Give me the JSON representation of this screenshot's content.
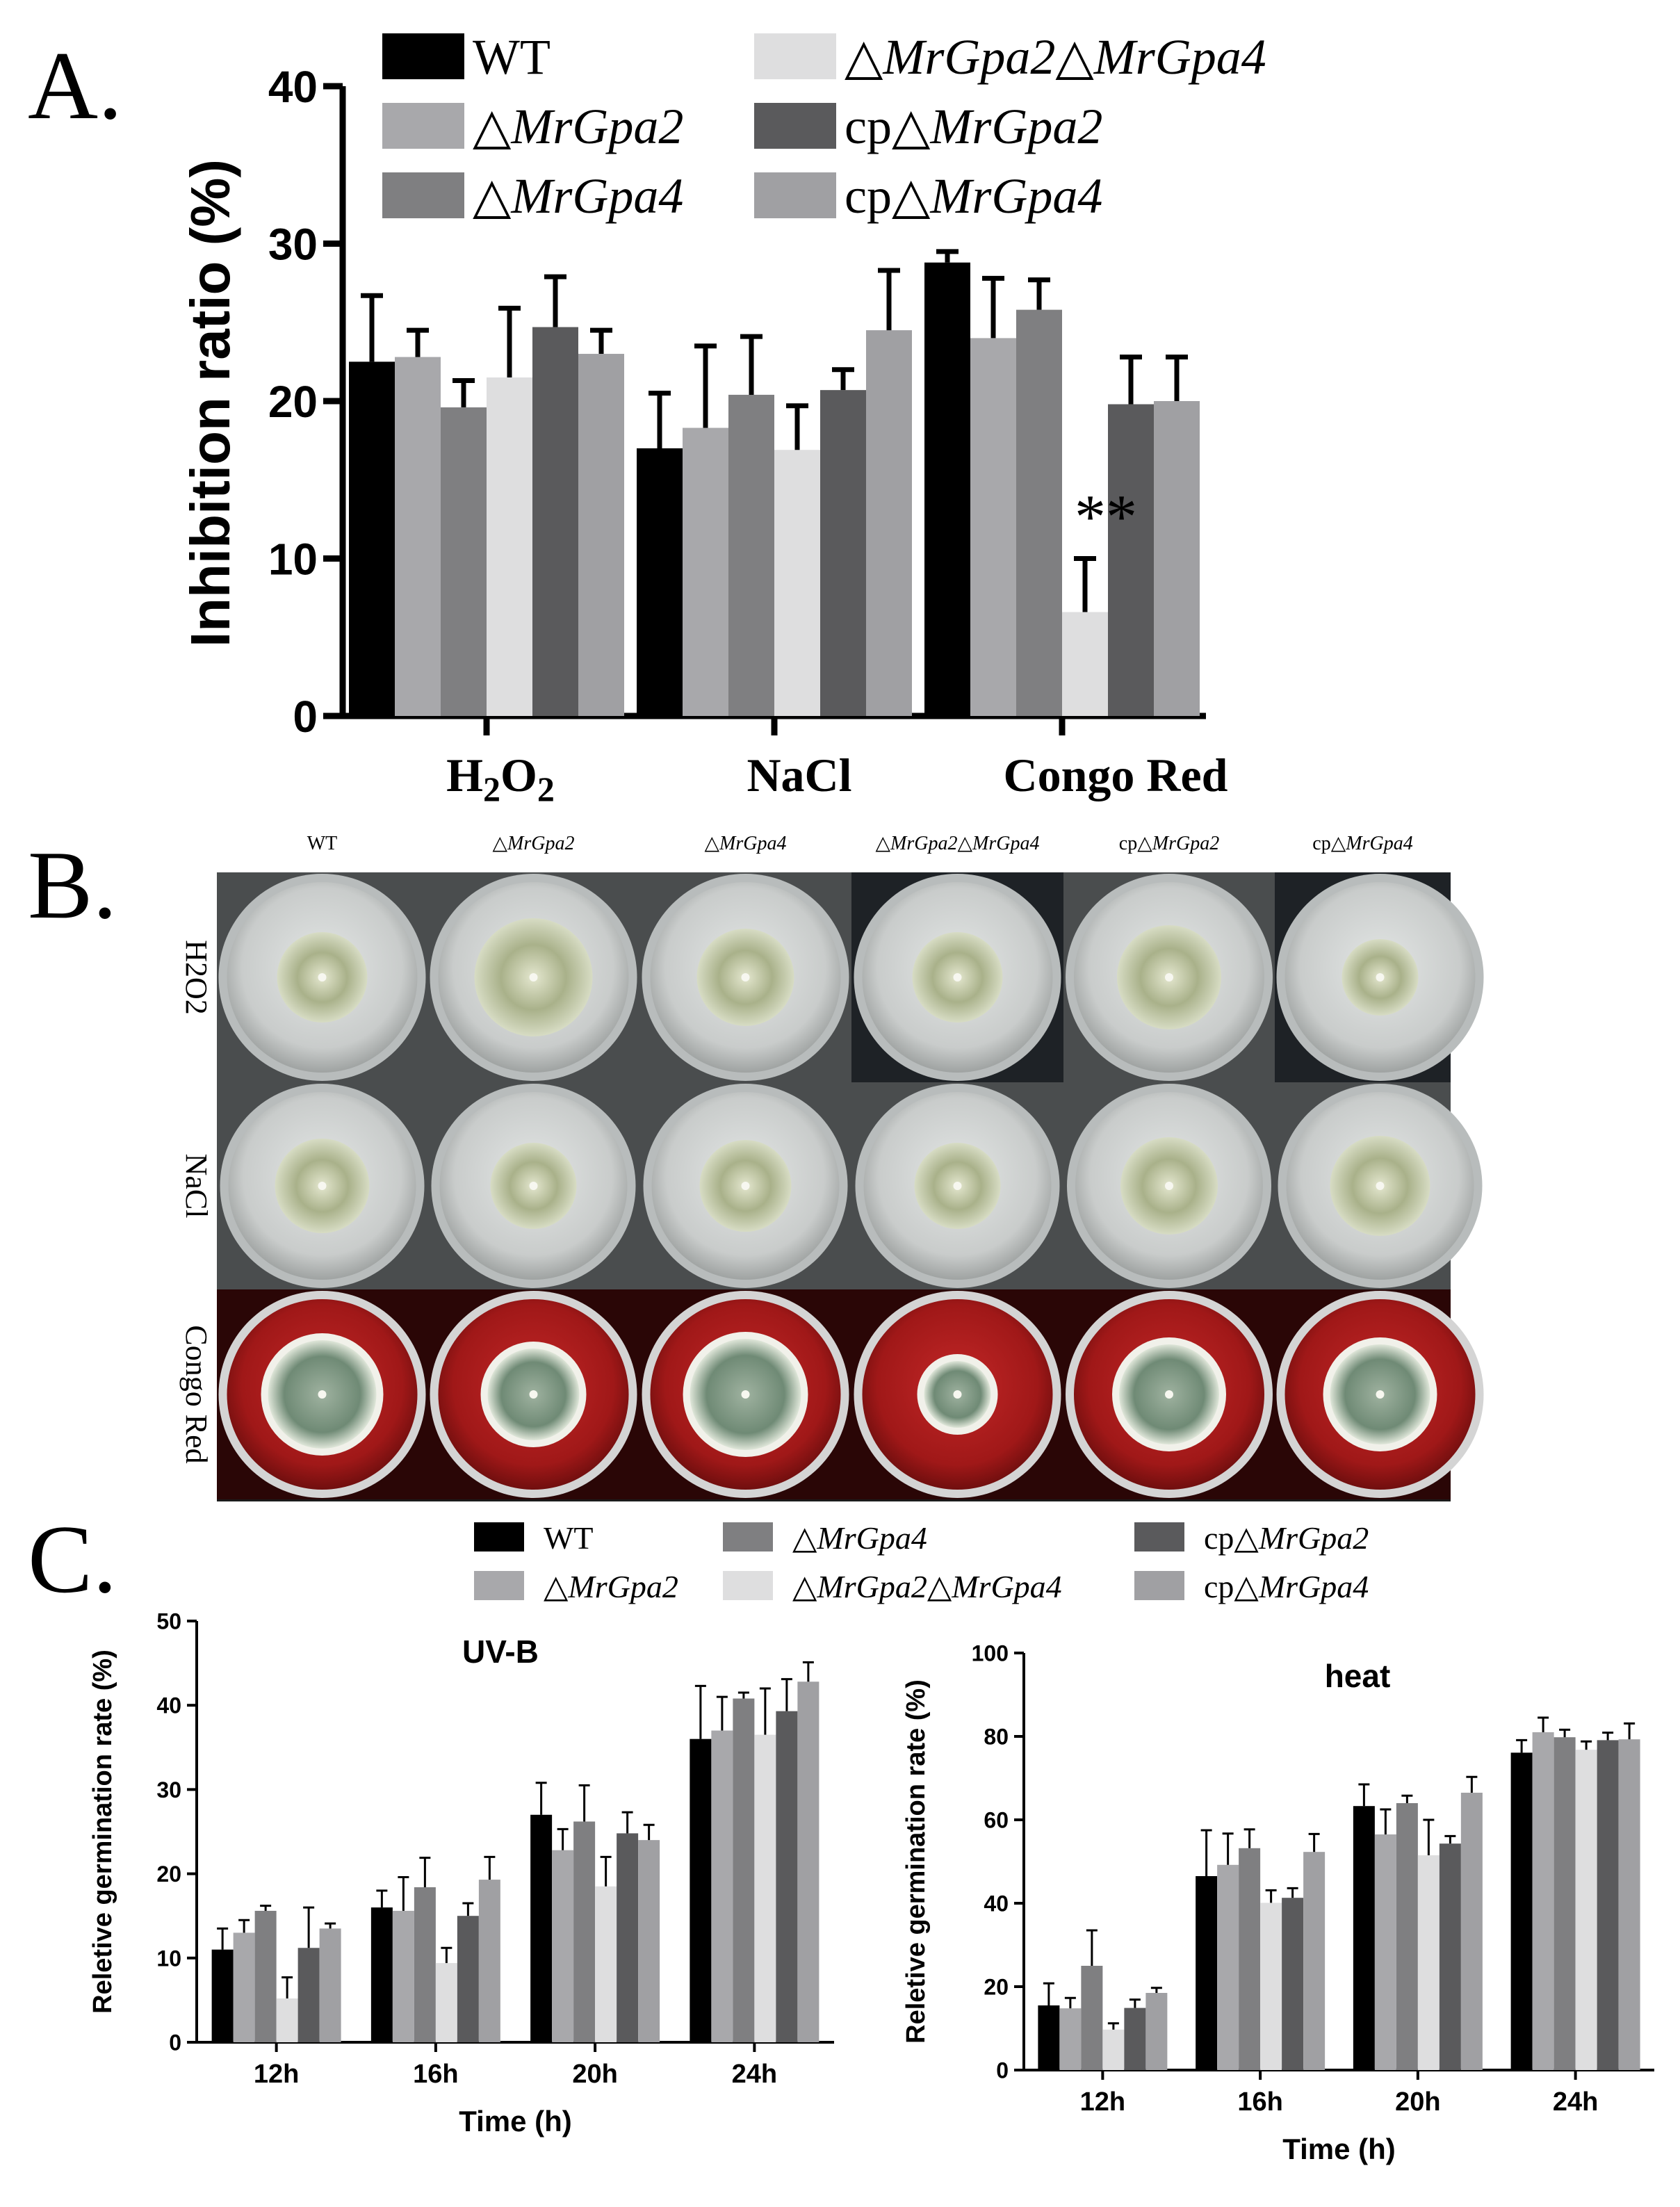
{
  "panels": {
    "a_label": "A.",
    "b_label": "B.",
    "c_label": "C."
  },
  "colors": {
    "strains": [
      "#000000",
      "#a8a8ab",
      "#7f7f81",
      "#dededf",
      "#5a5a5c",
      "#a0a0a3"
    ],
    "agar": "#d9dbda",
    "congo": "#a81e1e",
    "colony": "#c9cfa6"
  },
  "strains": [
    {
      "prefix": "",
      "sym": "",
      "italic": "",
      "plain": "WT",
      "key": "WT"
    },
    {
      "prefix": "",
      "sym": "△",
      "italic": "MrGpa2",
      "plain": "",
      "key": "△MrGpa2"
    },
    {
      "prefix": "",
      "sym": "△",
      "italic": "MrGpa4",
      "plain": "",
      "key": "△MrGpa4"
    },
    {
      "prefix": "",
      "sym": "△",
      "italic": "MrGpa2△MrGpa4",
      "plain": "",
      "key": "△MrGpa2△MrGpa4"
    },
    {
      "prefix": "cp",
      "sym": "△",
      "italic": "MrGpa2",
      "plain": "",
      "key": "cp△MrGpa2"
    },
    {
      "prefix": "cp",
      "sym": "△",
      "italic": "MrGpa4",
      "plain": "",
      "key": "cp△MrGpa4"
    }
  ],
  "chart_data": [
    {
      "id": "A",
      "type": "bar",
      "title": "",
      "xlabel": "",
      "ylabel": "Inhibition ratio (%)",
      "ylim": [
        0,
        40
      ],
      "yticks": [
        0,
        10,
        20,
        30,
        40
      ],
      "categories": [
        "H2O2",
        "NaCl",
        "Congo Red"
      ],
      "series": [
        {
          "name": "WT",
          "values": [
            22.5,
            17.0,
            28.8
          ],
          "errors": [
            4.2,
            3.5,
            0.7
          ]
        },
        {
          "name": "△MrGpa2",
          "values": [
            22.8,
            18.3,
            24.0
          ],
          "errors": [
            1.7,
            5.2,
            3.8
          ]
        },
        {
          "name": "△MrGpa4",
          "values": [
            19.6,
            20.4,
            25.8
          ],
          "errors": [
            1.7,
            3.7,
            1.9
          ]
        },
        {
          "name": "△MrGpa2△MrGpa4",
          "values": [
            21.5,
            16.9,
            6.6
          ],
          "errors": [
            4.4,
            2.8,
            3.4
          ]
        },
        {
          "name": "cp△MrGpa2",
          "values": [
            24.7,
            20.7,
            19.8
          ],
          "errors": [
            3.2,
            1.3,
            3.0
          ]
        },
        {
          "name": "cp△MrGpa4",
          "values": [
            23.0,
            24.5,
            20.0
          ],
          "errors": [
            1.5,
            3.8,
            2.8
          ]
        }
      ],
      "annotations": [
        {
          "category": "Congo Red",
          "series": "△MrGpa2△MrGpa4",
          "text": "**"
        }
      ]
    },
    {
      "id": "C1",
      "type": "bar",
      "title": "UV-B",
      "xlabel": "Time (h)",
      "ylabel": "Reletive germination rate (%)",
      "ylim": [
        0,
        50
      ],
      "yticks": [
        0,
        10,
        20,
        30,
        40,
        50
      ],
      "categories": [
        "12h",
        "16h",
        "20h",
        "24h"
      ],
      "series": [
        {
          "name": "WT",
          "values": [
            11,
            16,
            27,
            36
          ],
          "errors": [
            2.5,
            2,
            3.8,
            6.3
          ]
        },
        {
          "name": "△MrGpa2",
          "values": [
            13,
            15.6,
            22.8,
            37
          ],
          "errors": [
            1.5,
            4,
            2.5,
            4
          ]
        },
        {
          "name": "△MrGpa4",
          "values": [
            15.6,
            18.4,
            26.2,
            40.8
          ],
          "errors": [
            0.6,
            3.5,
            4.3,
            0.7
          ]
        },
        {
          "name": "△MrGpa2△MrGpa4",
          "values": [
            5.2,
            9.4,
            18.5,
            36.5
          ],
          "errors": [
            2.5,
            1.8,
            3.5,
            5.5
          ]
        },
        {
          "name": "cp△MrGpa2",
          "values": [
            11.2,
            15,
            24.8,
            39.3
          ],
          "errors": [
            4.8,
            1.5,
            2.5,
            3.8
          ]
        },
        {
          "name": "cp△MrGpa4",
          "values": [
            13.5,
            19.3,
            24,
            42.8
          ],
          "errors": [
            0.6,
            2.7,
            1.8,
            2.3
          ]
        }
      ]
    },
    {
      "id": "C2",
      "type": "bar",
      "title": "heat",
      "xlabel": "Time (h)",
      "ylabel": "Reletive germination rate (%)",
      "ylim": [
        0,
        100
      ],
      "yticks": [
        0,
        20,
        40,
        60,
        80,
        100
      ],
      "categories": [
        "12h",
        "16h",
        "20h",
        "24h"
      ],
      "series": [
        {
          "name": "WT",
          "values": [
            15.5,
            46.5,
            63.3,
            76.1
          ],
          "errors": [
            5.3,
            11,
            5.2,
            3
          ]
        },
        {
          "name": "△MrGpa2",
          "values": [
            14.8,
            49.2,
            56.5,
            81
          ],
          "errors": [
            2.5,
            7.5,
            6,
            3.5
          ]
        },
        {
          "name": "△MrGpa4",
          "values": [
            25,
            53.2,
            64,
            79.8
          ],
          "errors": [
            8.5,
            4.5,
            1.8,
            1.8
          ]
        },
        {
          "name": "△MrGpa2△MrGpa4",
          "values": [
            9.7,
            40.1,
            51.5,
            76.8
          ],
          "errors": [
            1.5,
            3,
            8.5,
            2
          ]
        },
        {
          "name": "cp△MrGpa2",
          "values": [
            14.9,
            41.3,
            54.3,
            79.1
          ],
          "errors": [
            2,
            2.3,
            1.8,
            1.8
          ]
        },
        {
          "name": "cp△MrGpa4",
          "values": [
            18.5,
            52.3,
            66.5,
            79.3
          ],
          "errors": [
            1.2,
            4.3,
            3.8,
            3.8
          ]
        }
      ]
    }
  ],
  "plates": {
    "rows": [
      "H2O2",
      "NaCl",
      "Congo Red"
    ],
    "columns": [
      "WT",
      "△MrGpa2",
      "△MrGpa4",
      "△MrGpa2△MrGpa4",
      "cp△MrGpa2",
      "cp△MrGpa4"
    ]
  }
}
